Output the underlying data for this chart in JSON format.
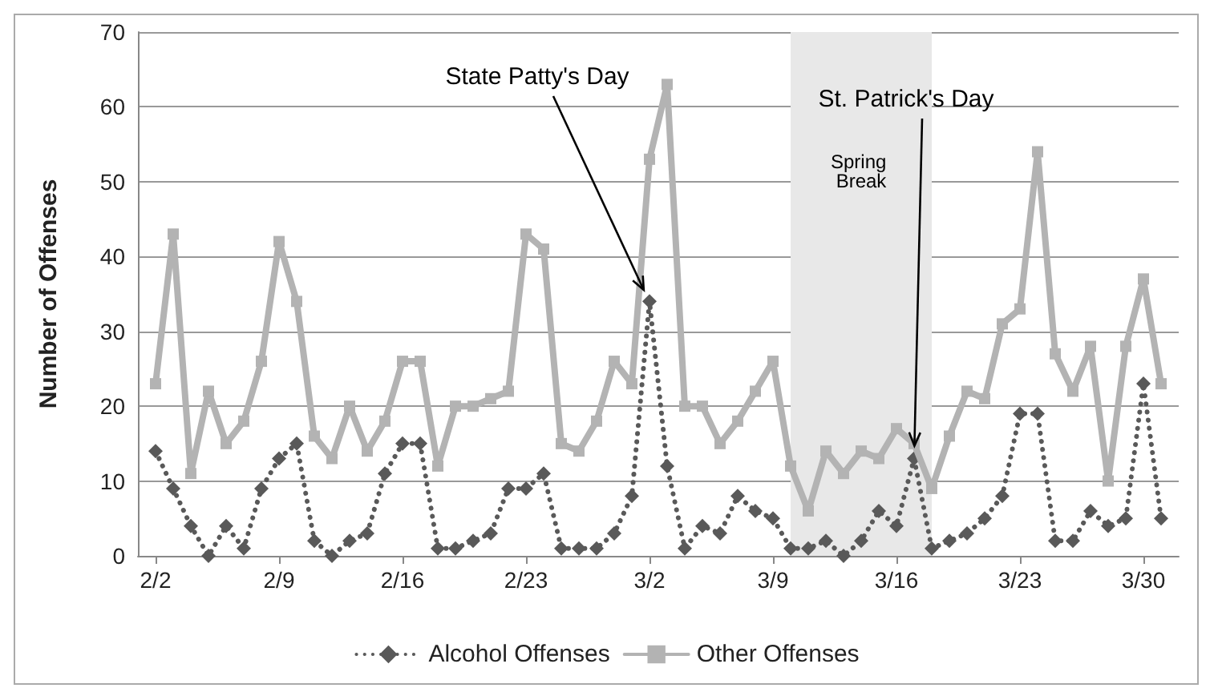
{
  "chart_data": {
    "type": "line",
    "ylabel": "Number of Offenses",
    "x": [
      "--02-02",
      "--02-03",
      "--02-04",
      "--02-05",
      "--02-06",
      "--02-07",
      "--02-08",
      "--02-09",
      "--02-10",
      "--02-11",
      "--02-12",
      "--02-13",
      "--02-14",
      "--02-15",
      "--02-16",
      "--02-17",
      "--02-18",
      "--02-19",
      "--02-20",
      "--02-21",
      "--02-22",
      "--02-23",
      "--02-24",
      "--02-25",
      "--02-26",
      "--02-27",
      "--02-28",
      "--03-01",
      "--03-02",
      "--03-03",
      "--03-04",
      "--03-05",
      "--03-06",
      "--03-07",
      "--03-08",
      "--03-09",
      "--03-10",
      "--03-11",
      "--03-12",
      "--03-13",
      "--03-14",
      "--03-15",
      "--03-16",
      "--03-17",
      "--03-18",
      "--03-19",
      "--03-20",
      "--03-21",
      "--03-22",
      "--03-23",
      "--03-24",
      "--03-25",
      "--03-26",
      "--03-27",
      "--03-28",
      "--03-29",
      "--03-30",
      "--03-31"
    ],
    "series": [
      {
        "name": "Alcohol Offenses",
        "color": "#595959",
        "marker": "diamond",
        "line_style": "dotted",
        "values": [
          14,
          9,
          4,
          0,
          4,
          1,
          9,
          13,
          15,
          2,
          0,
          2,
          3,
          11,
          15,
          15,
          1,
          1,
          2,
          3,
          9,
          9,
          11,
          1,
          1,
          1,
          3,
          8,
          34,
          12,
          1,
          4,
          3,
          8,
          6,
          5,
          1,
          1,
          2,
          0,
          2,
          6,
          4,
          13,
          1,
          2,
          3,
          5,
          8,
          19,
          19,
          2,
          2,
          6,
          4,
          5,
          23,
          5
        ]
      },
      {
        "name": "Other Offenses",
        "color": "#b3b3b3",
        "marker": "square",
        "line_style": "solid",
        "values": [
          23,
          43,
          11,
          22,
          15,
          18,
          26,
          42,
          34,
          16,
          13,
          20,
          14,
          18,
          26,
          26,
          12,
          20,
          20,
          21,
          22,
          43,
          41,
          15,
          14,
          18,
          26,
          23,
          53,
          63,
          20,
          20,
          15,
          18,
          22,
          26,
          12,
          6,
          14,
          11,
          14,
          13,
          17,
          15,
          9,
          16,
          22,
          21,
          31,
          33,
          54,
          27,
          22,
          28,
          10,
          28,
          37,
          23
        ]
      }
    ],
    "xlim": [
      "--02-01",
      "--04-01"
    ],
    "xticks": [
      {
        "value": "--02-02",
        "label": "2/2"
      },
      {
        "value": "--02-09",
        "label": "2/9"
      },
      {
        "value": "--02-16",
        "label": "2/16"
      },
      {
        "value": "--02-23",
        "label": "2/23"
      },
      {
        "value": "--03-02",
        "label": "3/2"
      },
      {
        "value": "--03-09",
        "label": "3/9"
      },
      {
        "value": "--03-16",
        "label": "3/16"
      },
      {
        "value": "--03-23",
        "label": "3/23"
      },
      {
        "value": "--03-30",
        "label": "3/30"
      }
    ],
    "ylim": [
      0,
      70
    ],
    "yticks": [
      0,
      10,
      20,
      30,
      40,
      50,
      60,
      70
    ],
    "grid": "y",
    "legend": "bottom",
    "bands": [
      {
        "axis": "x",
        "from": "--03-10",
        "to": "--03-18",
        "label": "Spring Break",
        "color": "#e8e8e8"
      }
    ],
    "annotations": [
      {
        "text": "State Patty's Day",
        "x": "--03-02",
        "y": 34
      },
      {
        "text": "St. Patrick's Day",
        "x": "--03-17",
        "y": 13
      }
    ]
  }
}
